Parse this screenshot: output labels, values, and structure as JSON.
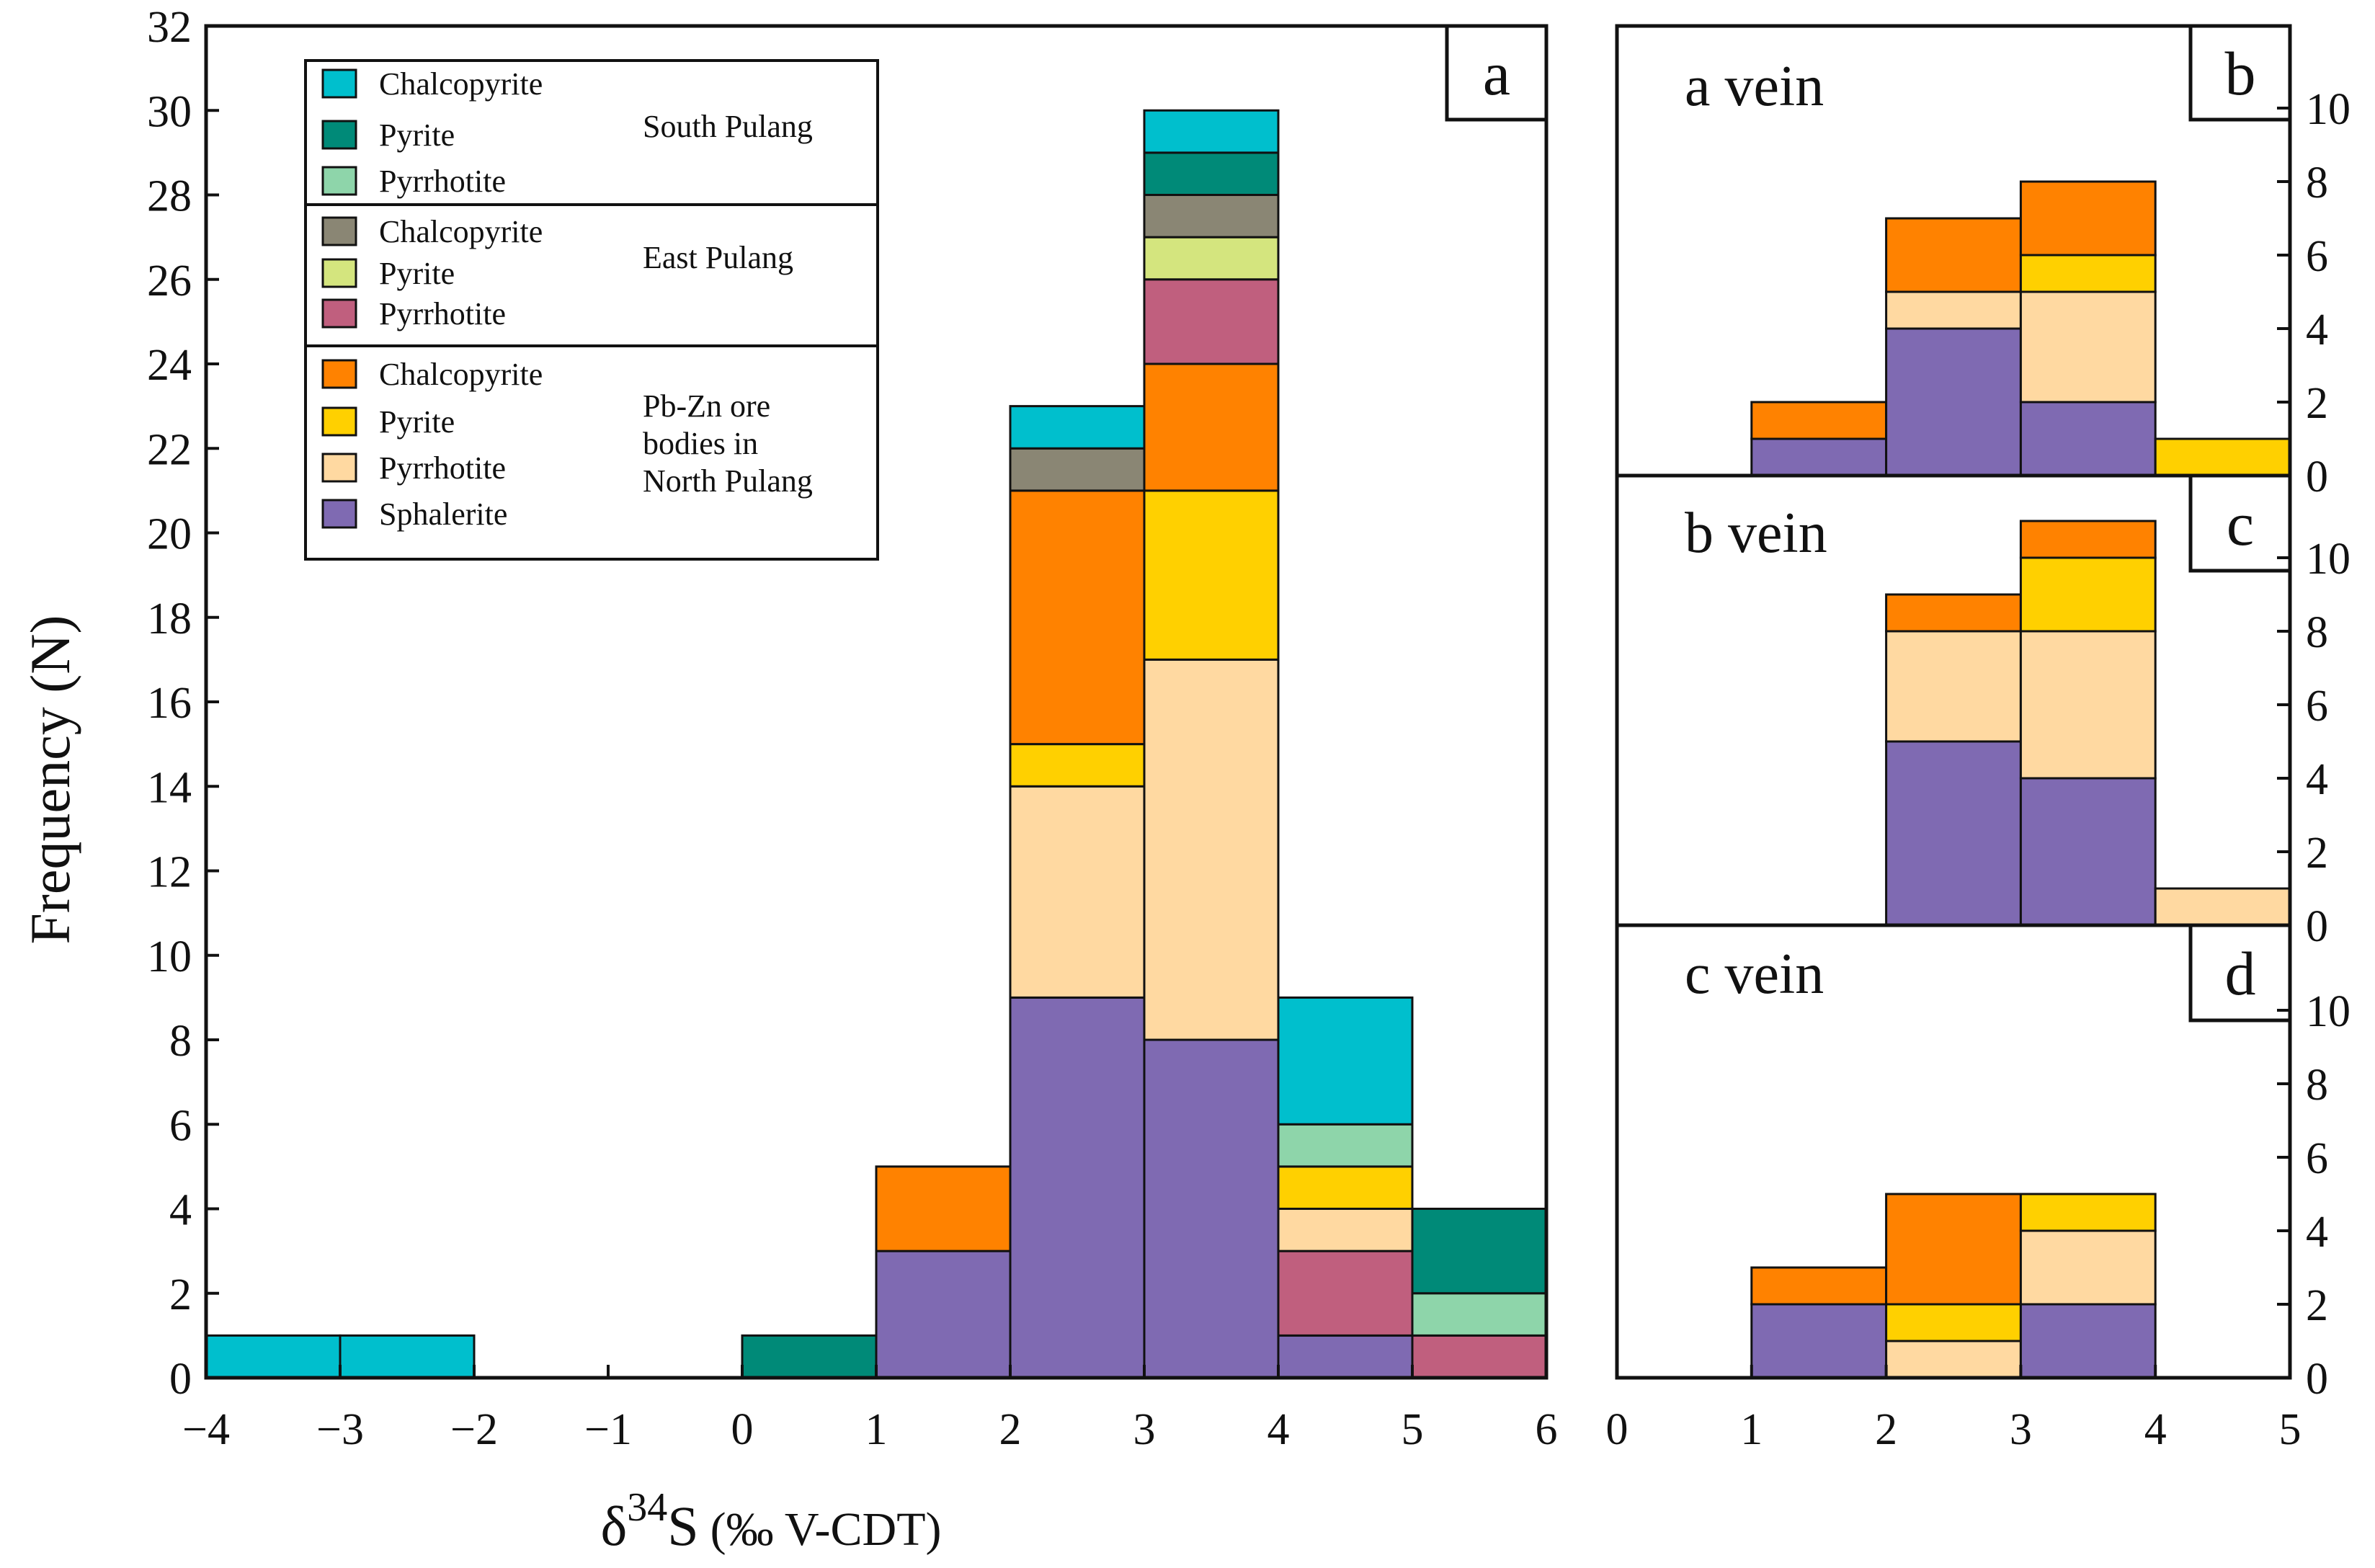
{
  "chart_data": [
    {
      "panel": "a",
      "type": "bar",
      "stacked": true,
      "xlabel": "δ34S (‰ V-CDT)",
      "xlabel_parts": {
        "delta": "δ",
        "sup": "34",
        "element": "S",
        "unit": "(‰ V-CDT)"
      },
      "ylabel": "Frequency (N)",
      "xlim": [
        -4,
        6
      ],
      "ylim": [
        0,
        32
      ],
      "xticks": [
        "−4",
        "−3",
        "−2",
        "−1",
        "0",
        "1",
        "2",
        "3",
        "4",
        "5",
        "6"
      ],
      "yticks": [
        "0",
        "2",
        "4",
        "6",
        "8",
        "10",
        "12",
        "14",
        "16",
        "18",
        "20",
        "22",
        "24",
        "26",
        "28",
        "30",
        "32"
      ],
      "bin_width": 1,
      "bins": [
        {
          "x0": -4,
          "segments": [
            {
              "mineral": "chalcopyrite_south",
              "count": 1
            }
          ]
        },
        {
          "x0": -3,
          "segments": [
            {
              "mineral": "chalcopyrite_south",
              "count": 1
            }
          ]
        },
        {
          "x0": 0,
          "segments": [
            {
              "mineral": "pyrite_south",
              "count": 1
            }
          ]
        },
        {
          "x0": 1,
          "segments": [
            {
              "mineral": "sphalerite_north",
              "count": 3
            },
            {
              "mineral": "chalcopyrite_north",
              "count": 2
            }
          ]
        },
        {
          "x0": 2,
          "segments": [
            {
              "mineral": "sphalerite_north",
              "count": 9
            },
            {
              "mineral": "pyrrhotite_north",
              "count": 5
            },
            {
              "mineral": "pyrite_north",
              "count": 1
            },
            {
              "mineral": "chalcopyrite_north",
              "count": 6
            },
            {
              "mineral": "chalcopyrite_east",
              "count": 1
            },
            {
              "mineral": "chalcopyrite_south",
              "count": 1
            }
          ]
        },
        {
          "x0": 3,
          "segments": [
            {
              "mineral": "sphalerite_north",
              "count": 8
            },
            {
              "mineral": "pyrrhotite_north",
              "count": 9
            },
            {
              "mineral": "pyrite_north",
              "count": 4
            },
            {
              "mineral": "chalcopyrite_north",
              "count": 3
            },
            {
              "mineral": "pyrrhotite_east",
              "count": 2
            },
            {
              "mineral": "pyrite_east",
              "count": 1
            },
            {
              "mineral": "chalcopyrite_east",
              "count": 1
            },
            {
              "mineral": "pyrite_south",
              "count": 1
            },
            {
              "mineral": "chalcopyrite_south",
              "count": 1
            }
          ]
        },
        {
          "x0": 4,
          "segments": [
            {
              "mineral": "sphalerite_north",
              "count": 1
            },
            {
              "mineral": "pyrrhotite_east",
              "count": 2
            },
            {
              "mineral": "pyrrhotite_north",
              "count": 1
            },
            {
              "mineral": "pyrite_north",
              "count": 1
            },
            {
              "mineral": "pyrrhotite_south",
              "count": 1
            },
            {
              "mineral": "chalcopyrite_south",
              "count": 3
            }
          ]
        },
        {
          "x0": 5,
          "segments": [
            {
              "mineral": "pyrrhotite_east",
              "count": 1
            },
            {
              "mineral": "pyrrhotite_south",
              "count": 1
            },
            {
              "mineral": "pyrite_south",
              "count": 2
            }
          ]
        }
      ]
    },
    {
      "panel": "b",
      "type": "bar",
      "stacked": true,
      "title": "a vein",
      "xlim": [
        0,
        5
      ],
      "ylim": [
        0,
        12
      ],
      "yticks": [
        "0",
        "2",
        "4",
        "6",
        "8",
        "10"
      ],
      "bin_width": 1,
      "bins": [
        {
          "x0": 1,
          "segments": [
            {
              "mineral": "sphalerite_north",
              "count": 1
            },
            {
              "mineral": "chalcopyrite_north",
              "count": 1
            }
          ]
        },
        {
          "x0": 2,
          "segments": [
            {
              "mineral": "sphalerite_north",
              "count": 4
            },
            {
              "mineral": "pyrrhotite_north",
              "count": 1
            },
            {
              "mineral": "chalcopyrite_north",
              "count": 2
            }
          ]
        },
        {
          "x0": 3,
          "segments": [
            {
              "mineral": "sphalerite_north",
              "count": 2
            },
            {
              "mineral": "pyrrhotite_north",
              "count": 3
            },
            {
              "mineral": "pyrite_north",
              "count": 1
            },
            {
              "mineral": "chalcopyrite_north",
              "count": 2
            }
          ]
        },
        {
          "x0": 4,
          "segments": [
            {
              "mineral": "pyrite_north",
              "count": 1
            }
          ]
        }
      ]
    },
    {
      "panel": "c",
      "type": "bar",
      "stacked": true,
      "title": "b vein",
      "xlim": [
        0,
        5
      ],
      "ylim": [
        0,
        12
      ],
      "yticks": [
        "0",
        "2",
        "4",
        "6",
        "8",
        "10"
      ],
      "bin_width": 1,
      "bins": [
        {
          "x0": 2,
          "segments": [
            {
              "mineral": "sphalerite_north",
              "count": 5
            },
            {
              "mineral": "pyrrhotite_north",
              "count": 3
            },
            {
              "mineral": "chalcopyrite_north",
              "count": 1
            }
          ]
        },
        {
          "x0": 3,
          "segments": [
            {
              "mineral": "sphalerite_north",
              "count": 4
            },
            {
              "mineral": "pyrrhotite_north",
              "count": 4
            },
            {
              "mineral": "pyrite_north",
              "count": 2
            },
            {
              "mineral": "chalcopyrite_north",
              "count": 1
            }
          ]
        },
        {
          "x0": 4,
          "segments": [
            {
              "mineral": "pyrrhotite_north",
              "count": 1
            }
          ]
        }
      ]
    },
    {
      "panel": "d",
      "type": "bar",
      "stacked": true,
      "title": "c vein",
      "xlim": [
        0,
        5
      ],
      "ylim": [
        0,
        12
      ],
      "xticks": [
        "0",
        "1",
        "2",
        "3",
        "4",
        "5"
      ],
      "yticks": [
        "0",
        "2",
        "4",
        "6",
        "8",
        "10"
      ],
      "bin_width": 1,
      "bins": [
        {
          "x0": 1,
          "segments": [
            {
              "mineral": "sphalerite_north",
              "count": 2
            },
            {
              "mineral": "chalcopyrite_north",
              "count": 1
            }
          ]
        },
        {
          "x0": 2,
          "segments": [
            {
              "mineral": "pyrrhotite_north",
              "count": 1
            },
            {
              "mineral": "pyrite_north",
              "count": 1
            },
            {
              "mineral": "chalcopyrite_north",
              "count": 3
            }
          ]
        },
        {
          "x0": 3,
          "segments": [
            {
              "mineral": "sphalerite_north",
              "count": 2
            },
            {
              "mineral": "pyrrhotite_north",
              "count": 2
            },
            {
              "mineral": "pyrite_north",
              "count": 1
            }
          ]
        }
      ]
    }
  ],
  "legend": {
    "placement": "top-left of panel a",
    "groups": [
      {
        "name": "South Pulang",
        "name_lines": [
          "South Pulang"
        ],
        "items": [
          {
            "key": "chalcopyrite_south",
            "label": "Chalcopyrite",
            "color": "#00bfcd"
          },
          {
            "key": "pyrite_south",
            "label": "Pyrite",
            "color": "#008a78"
          },
          {
            "key": "pyrrhotite_south",
            "label": "Pyrrhotite",
            "color": "#8ed5aa"
          }
        ]
      },
      {
        "name": "East Pulang",
        "name_lines": [
          "East Pulang"
        ],
        "items": [
          {
            "key": "chalcopyrite_east",
            "label": "Chalcopyrite",
            "color": "#8a8674"
          },
          {
            "key": "pyrite_east",
            "label": "Pyrite",
            "color": "#d4e57e"
          },
          {
            "key": "pyrrhotite_east",
            "label": "Pyrrhotite",
            "color": "#c05f7e"
          }
        ]
      },
      {
        "name": "Pb-Zn ore bodies in North Pulang",
        "name_lines": [
          "Pb-Zn ore",
          "bodies in",
          "North Pulang"
        ],
        "items": [
          {
            "key": "chalcopyrite_north",
            "label": "Chalcopyrite",
            "color": "#ff8200"
          },
          {
            "key": "pyrite_north",
            "label": "Pyrite",
            "color": "#ffd000"
          },
          {
            "key": "pyrrhotite_north",
            "label": "Pyrrhotite",
            "color": "#ffd9a1"
          },
          {
            "key": "sphalerite_north",
            "label": "Sphalerite",
            "color": "#7f6ab2"
          }
        ]
      }
    ]
  }
}
